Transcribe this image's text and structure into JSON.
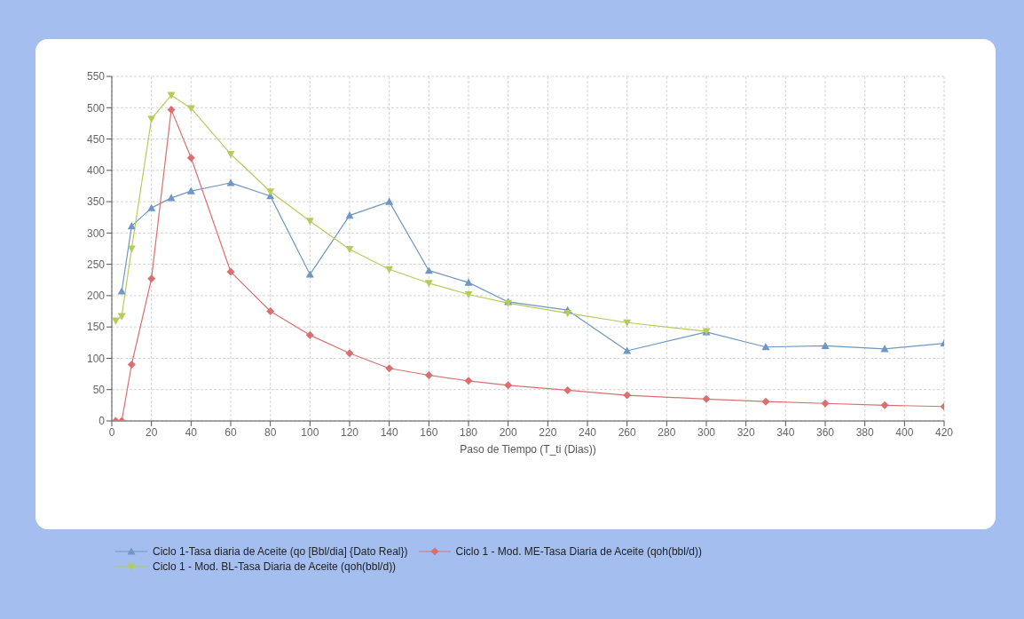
{
  "chart_data": {
    "type": "line",
    "xlabel": "Paso de Tiempo (T_ti (Dias))",
    "xlim": [
      0,
      420
    ],
    "xticks": [
      0,
      20,
      40,
      60,
      80,
      100,
      120,
      140,
      160,
      180,
      200,
      220,
      240,
      260,
      280,
      300,
      320,
      340,
      360,
      380,
      400,
      420
    ],
    "ylim": [
      0,
      550
    ],
    "yticks": [
      0,
      50,
      100,
      150,
      200,
      250,
      300,
      350,
      400,
      450,
      500,
      550
    ],
    "grid": true,
    "legend": "bottom",
    "line_style": "solid",
    "series": [
      {
        "name": "Ciclo 1-Tasa diaria de Aceite (qo [Bbl/dia] {Dato Real})",
        "color": "#6f96c4",
        "marker": "triangle",
        "x": [
          5,
          10,
          20,
          30,
          40,
          60,
          80,
          100,
          120,
          140,
          160,
          180,
          200,
          230,
          260,
          300,
          330,
          360,
          390,
          420
        ],
        "values": [
          207,
          311,
          340,
          356,
          367,
          380,
          359,
          234,
          328,
          350,
          240,
          221,
          190,
          177,
          112,
          142,
          118,
          120,
          115,
          124
        ]
      },
      {
        "name": "Ciclo 1 - Mod. ME-Tasa Diaria de Aceite (qoh(bbl/d))",
        "color": "#d9706f",
        "marker": "diamond",
        "x": [
          2,
          5,
          10,
          20,
          30,
          40,
          60,
          80,
          100,
          120,
          140,
          160,
          180,
          200,
          230,
          260,
          300,
          330,
          360,
          390,
          420
        ],
        "values": [
          0,
          0,
          90,
          227,
          497,
          420,
          238,
          175,
          137,
          108,
          84,
          73,
          64,
          57,
          49,
          41,
          35,
          31,
          28,
          25,
          23
        ]
      },
      {
        "name": "Ciclo 1 - Mod. BL-Tasa Diaria de Aceite (qoh(bbl/d))",
        "color": "#b5cc5a",
        "marker": "triangle-down",
        "x": [
          2,
          5,
          10,
          20,
          30,
          40,
          60,
          80,
          100,
          120,
          140,
          160,
          180,
          200,
          230,
          260,
          300
        ],
        "values": [
          160,
          167,
          275,
          482,
          520,
          499,
          426,
          366,
          319,
          274,
          242,
          220,
          202,
          188,
          172,
          157,
          143
        ]
      }
    ]
  }
}
